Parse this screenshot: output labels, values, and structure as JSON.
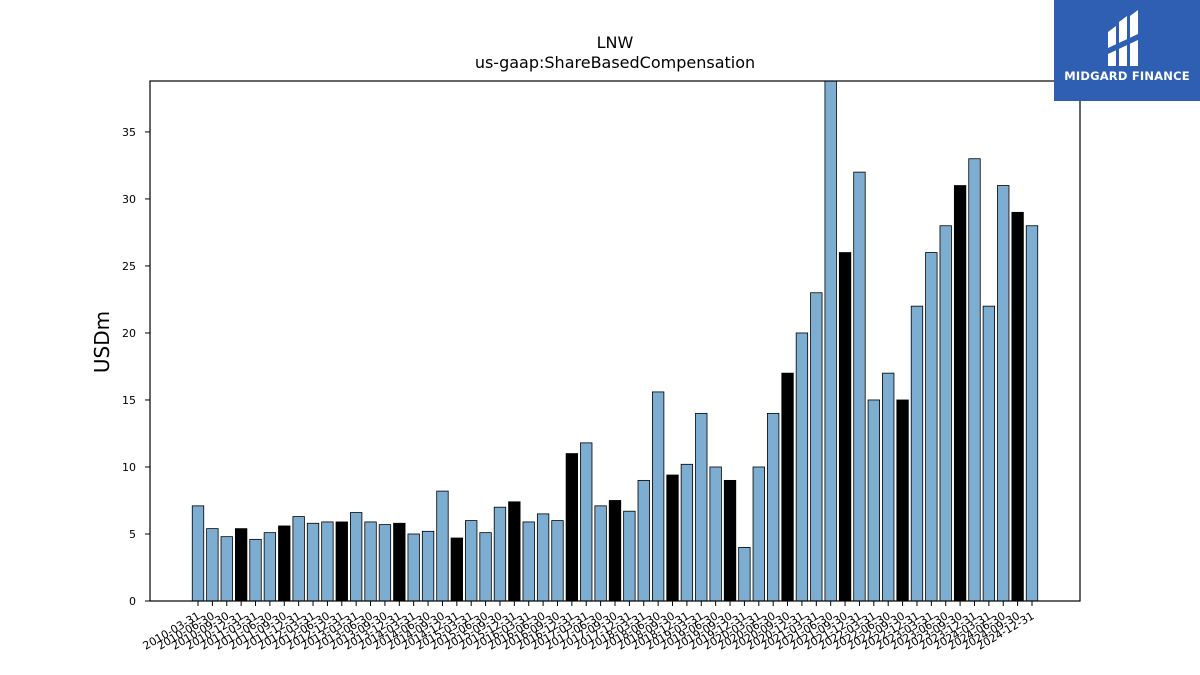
{
  "chart_data": {
    "type": "bar",
    "title": "LNW",
    "subtitle": "us-gaap:ShareBasedCompensation",
    "xlabel": "",
    "ylabel": "USDm",
    "ylim": [
      0,
      38.8
    ],
    "yticks": [
      0,
      5,
      10,
      15,
      20,
      25,
      30,
      35
    ],
    "grid": false,
    "colors": {
      "quarter": "#7eadd2",
      "annual": "#000000",
      "edge": "#000000"
    },
    "categories": [
      "2010-03-31",
      "2010-06-30",
      "2010-09-30",
      "2010-12-31",
      "2011-03-31",
      "2011-06-30",
      "2011-09-30",
      "2011-12-31",
      "2012-03-31",
      "2012-06-30",
      "2012-12-31",
      "2013-03-31",
      "2013-06-30",
      "2013-09-30",
      "2013-12-31",
      "2014-03-31",
      "2014-06-30",
      "2014-09-30",
      "2014-12-31",
      "2015-03-31",
      "2015-06-30",
      "2015-09-30",
      "2015-12-31",
      "2016-03-31",
      "2016-06-30",
      "2016-09-30",
      "2016-12-31",
      "2017-03-31",
      "2017-06-30",
      "2017-09-30",
      "2017-12-31",
      "2018-03-31",
      "2018-06-30",
      "2018-09-30",
      "2018-12-31",
      "2019-03-31",
      "2019-06-30",
      "2019-09-30",
      "2019-12-31",
      "2020-03-31",
      "2020-06-30",
      "2020-09-30",
      "2020-12-31",
      "2021-03-31",
      "2021-06-30",
      "2021-09-30",
      "2021-12-31",
      "2022-03-31",
      "2022-06-30",
      "2022-09-30",
      "2022-12-31",
      "2023-03-31",
      "2023-06-30",
      "2023-09-30",
      "2023-12-31",
      "2024-03-31",
      "2024-06-30",
      "2024-09-30",
      "2024-12-31"
    ],
    "values": [
      7.1,
      5.4,
      4.8,
      5.4,
      4.6,
      5.1,
      5.6,
      6.3,
      5.8,
      5.9,
      5.9,
      6.6,
      5.9,
      5.7,
      5.8,
      5.0,
      5.2,
      8.2,
      4.7,
      6.0,
      5.1,
      7.0,
      7.4,
      5.9,
      6.5,
      6.0,
      11.0,
      11.8,
      7.1,
      7.5,
      6.7,
      9.0,
      15.6,
      9.4,
      10.2,
      14.0,
      10.0,
      9.0,
      4.0,
      10.0,
      14.0,
      17.0,
      20.0,
      23.0,
      39.0,
      26.0,
      32.0,
      15.0,
      17.0,
      15.0,
      22.0,
      26.0,
      28.0,
      31.0,
      33.0,
      22.0,
      31.0,
      29.0,
      28.0
    ],
    "annual": [
      false,
      false,
      false,
      true,
      false,
      false,
      true,
      false,
      false,
      false,
      true,
      false,
      false,
      false,
      true,
      false,
      false,
      false,
      true,
      false,
      false,
      false,
      true,
      false,
      false,
      false,
      true,
      false,
      false,
      true,
      false,
      false,
      false,
      true,
      false,
      false,
      false,
      true,
      false,
      false,
      false,
      true,
      false,
      false,
      false,
      true,
      false,
      false,
      false,
      true,
      false,
      false,
      false,
      true,
      false,
      false,
      false,
      true,
      false
    ]
  },
  "logo": {
    "text": "MIDGARD FINANCE"
  }
}
